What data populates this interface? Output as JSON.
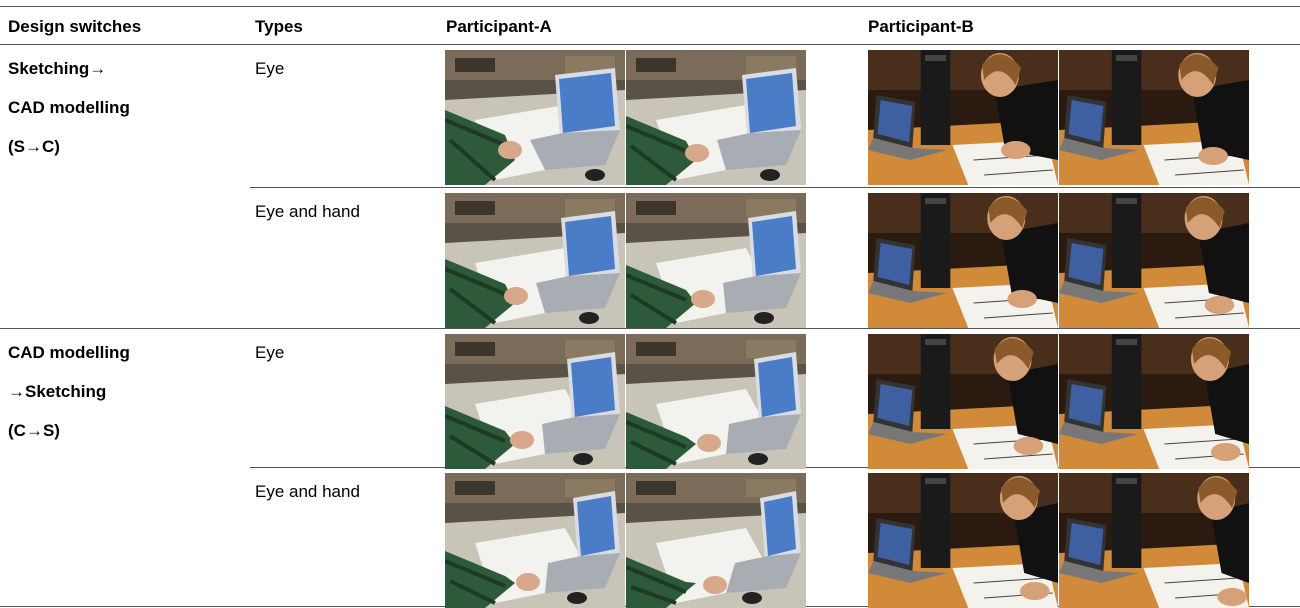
{
  "table": {
    "header": [
      "Design switches",
      "Types",
      "Participant-A",
      "Participant-B"
    ],
    "groups": [
      {
        "switch": [
          "Sketching→",
          "CAD modelling",
          "(S→C)"
        ],
        "types": [
          "Eye",
          "Eye and hand"
        ]
      },
      {
        "switch": [
          "CAD modelling",
          "→Sketching",
          "(C→S)"
        ],
        "types": [
          "Eye",
          "Eye and hand"
        ]
      }
    ]
  }
}
